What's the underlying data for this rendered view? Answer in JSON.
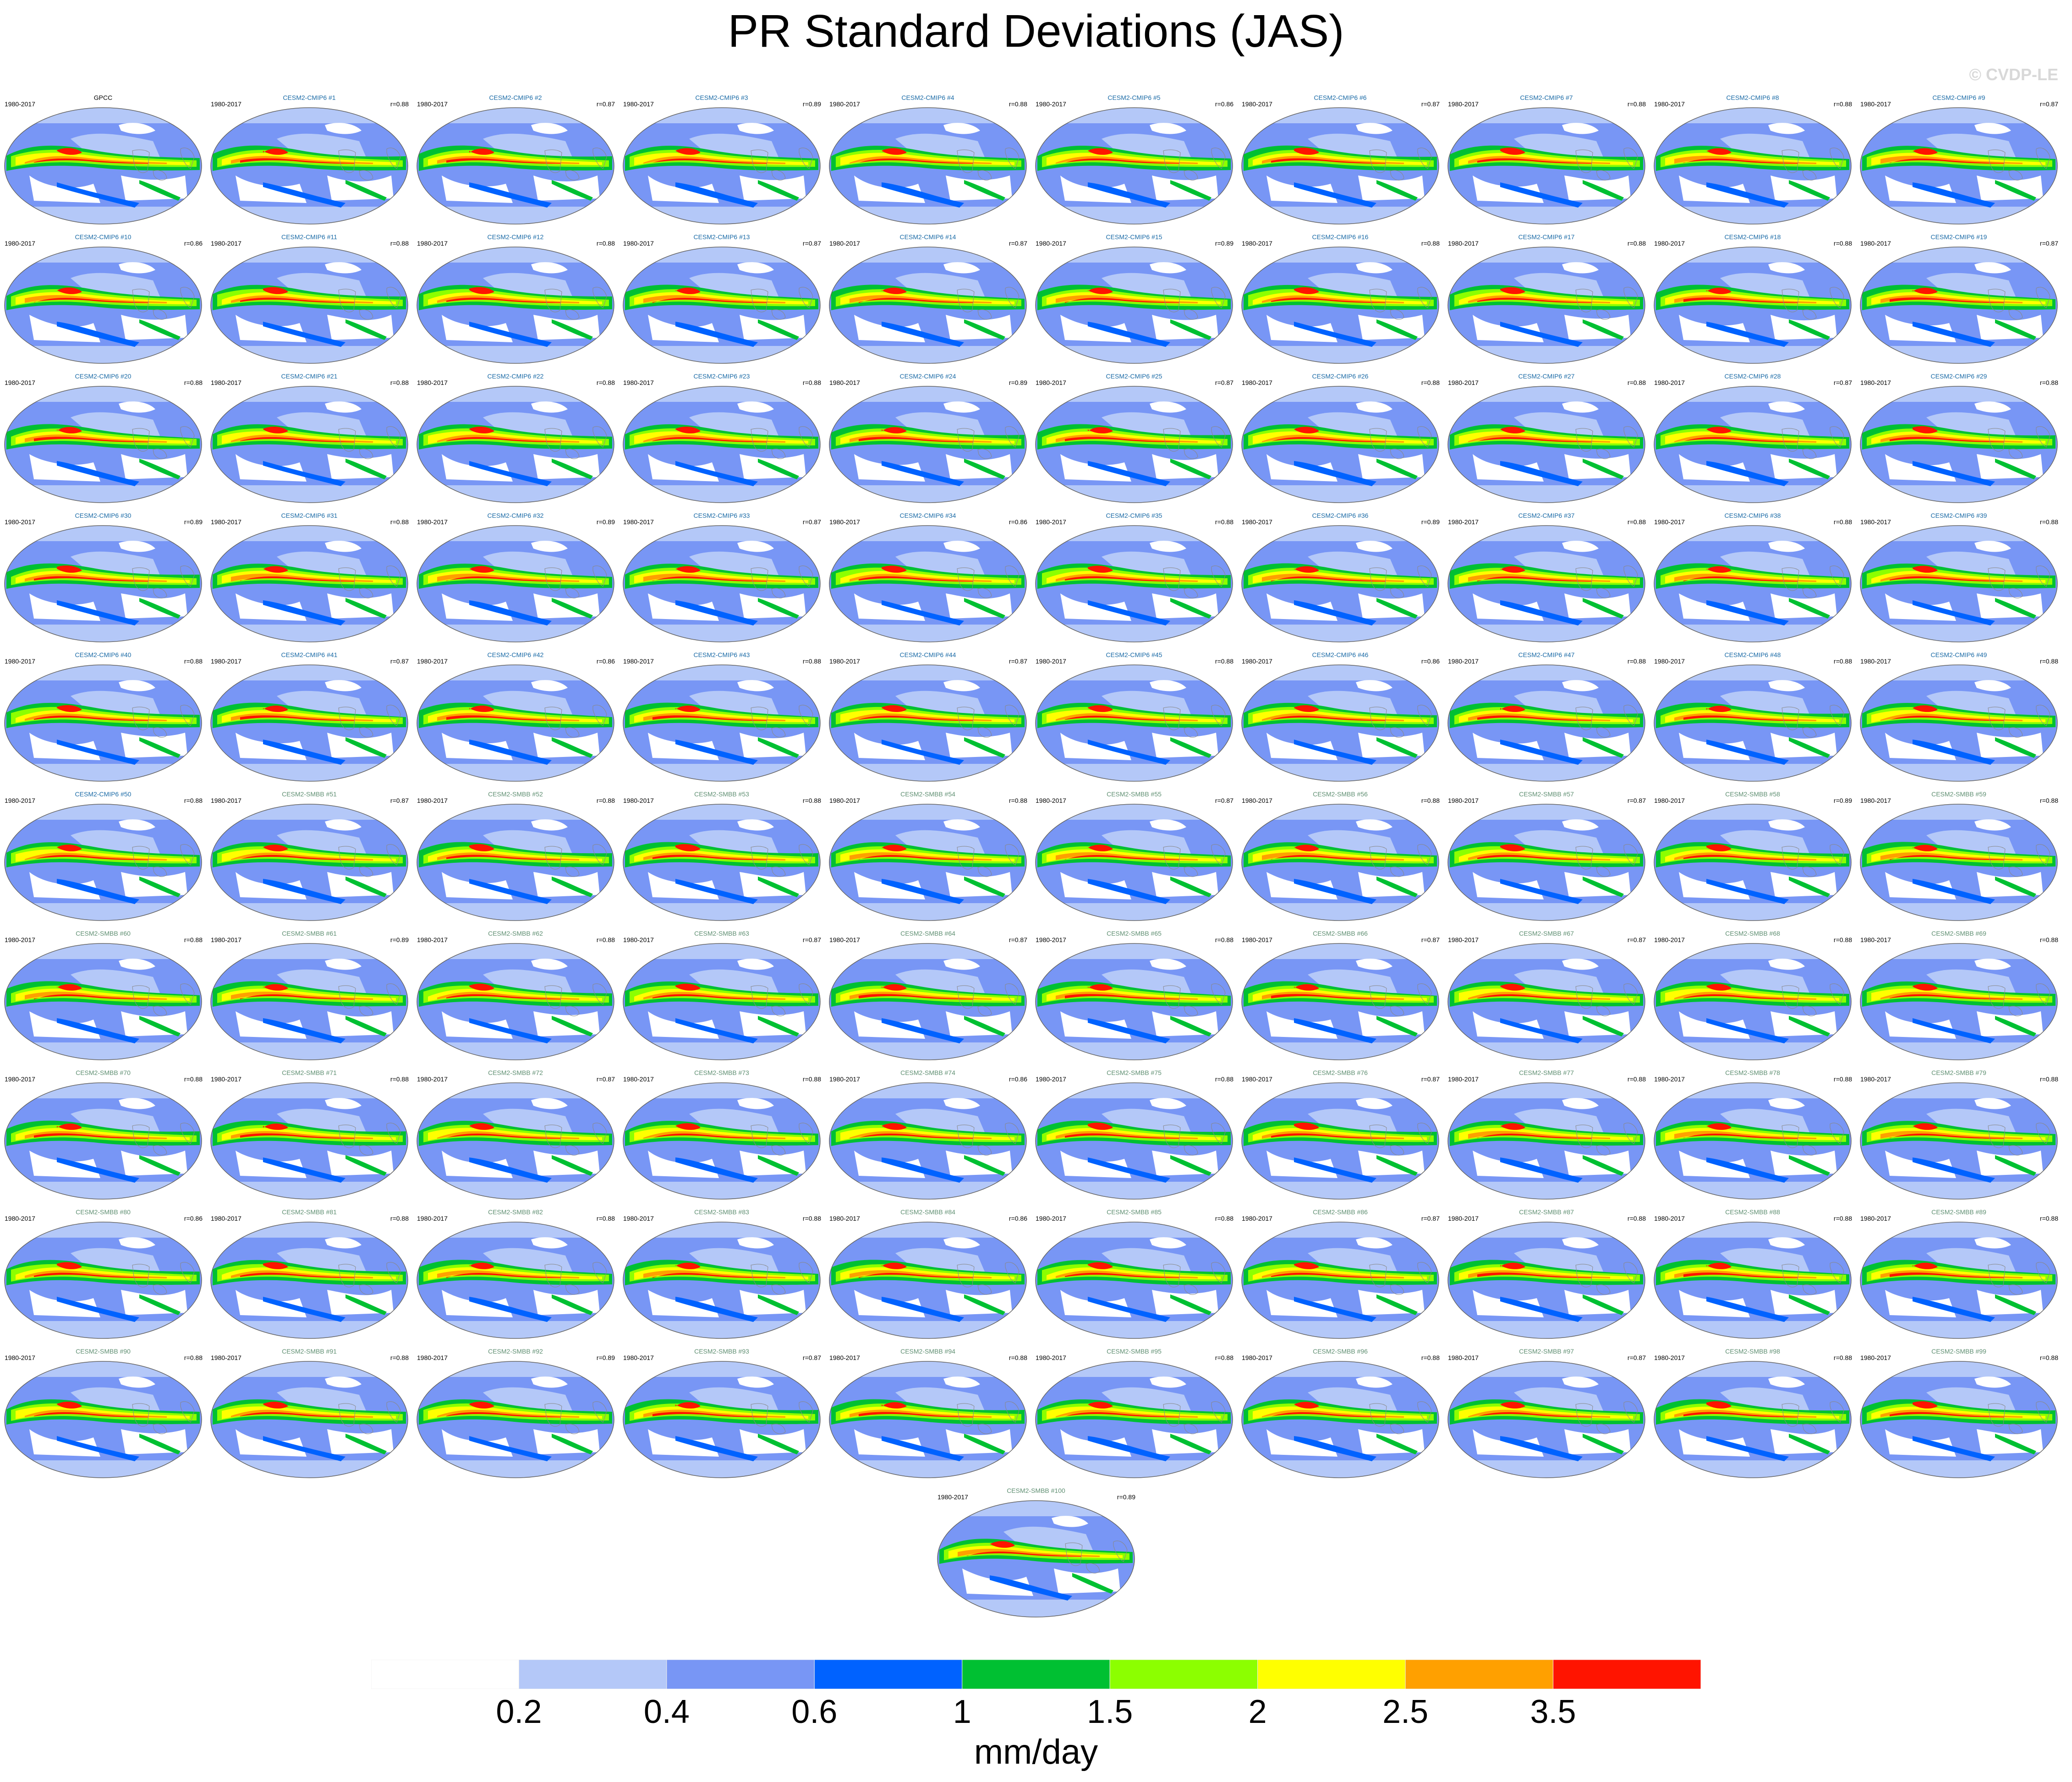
{
  "title": "PR Standard Deviations (JAS)",
  "watermark": "© CVDP-LE",
  "period": "1980-2017",
  "observation": {
    "name": "GPCC",
    "color": "#000000"
  },
  "ensemble_groups": [
    {
      "prefix": "CESM2-CMIP6",
      "first": 1,
      "last": 50,
      "color": "#1a6aa6"
    },
    {
      "prefix": "CESM2-SMBB",
      "first": 51,
      "last": 100,
      "color": "#5f8f72"
    }
  ],
  "pattern_correlations": [
    "0.88",
    "0.87",
    "0.89",
    "0.88",
    "0.86",
    "0.87",
    "0.88",
    "0.88",
    "0.87",
    "0.86",
    "0.88",
    "0.88",
    "0.87",
    "0.87",
    "0.89",
    "0.88",
    "0.88",
    "0.88",
    "0.87",
    "0.88",
    "0.88",
    "0.88",
    "0.88",
    "0.89",
    "0.87",
    "0.88",
    "0.88",
    "0.87",
    "0.88",
    "0.89",
    "0.88",
    "0.89",
    "0.87",
    "0.86",
    "0.88",
    "0.89",
    "0.88",
    "0.88",
    "0.88",
    "0.88",
    "0.87",
    "0.86",
    "0.88",
    "0.87",
    "0.88",
    "0.86",
    "0.88",
    "0.88",
    "0.88",
    "0.88",
    "0.87",
    "0.88",
    "0.88",
    "0.88",
    "0.87",
    "0.88",
    "0.87",
    "0.89",
    "0.88",
    "0.88",
    "0.89",
    "0.88",
    "0.87",
    "0.87",
    "0.88",
    "0.87",
    "0.87",
    "0.88",
    "0.88",
    "0.88",
    "0.88",
    "0.87",
    "0.88",
    "0.86",
    "0.88",
    "0.87",
    "0.88",
    "0.88",
    "0.88",
    "0.86",
    "0.88",
    "0.88",
    "0.88",
    "0.86",
    "0.88",
    "0.87",
    "0.88",
    "0.88",
    "0.88",
    "0.88",
    "0.88",
    "0.89",
    "0.87",
    "0.88",
    "0.88",
    "0.88",
    "0.87",
    "0.88",
    "0.88",
    "0.89"
  ],
  "colorbar": {
    "colors": [
      "#ffffff",
      "#b4c8f8",
      "#7896f5",
      "#0062ff",
      "#00c032",
      "#8cff00",
      "#ffff00",
      "#ffa000",
      "#ff1400"
    ],
    "labels": [
      "0.2",
      "0.4",
      "0.6",
      "1",
      "1.5",
      "2",
      "2.5",
      "3.5"
    ],
    "unit": "mm/day"
  }
}
